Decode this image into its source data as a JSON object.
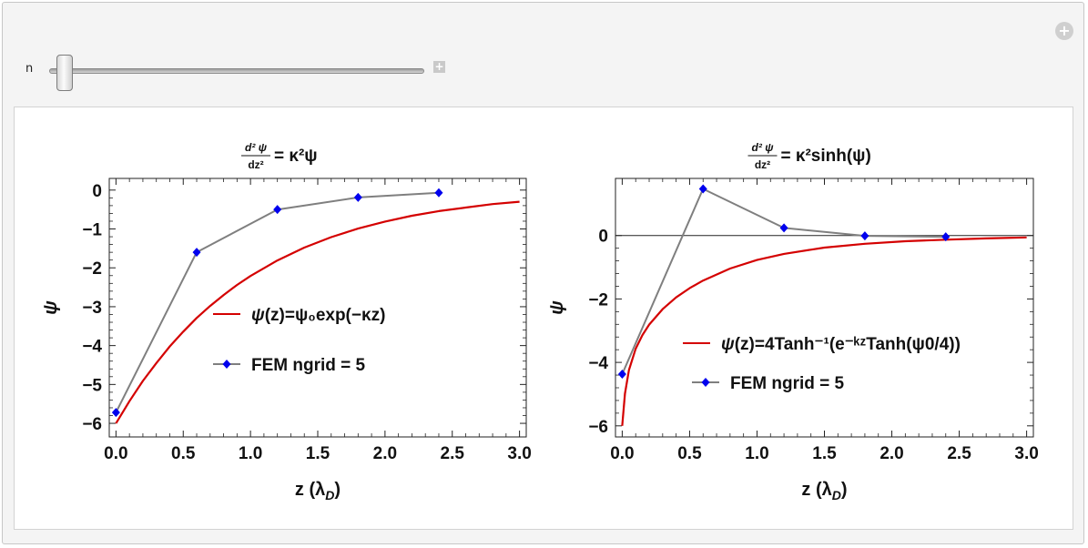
{
  "controls": {
    "slider_label": "n",
    "slider_value": 0.0,
    "increment_glyph": "+",
    "options_glyph": "+"
  },
  "chart_data": [
    {
      "type": "line",
      "title": {
        "lhs_num": "d² ψ",
        "lhs_den": "dz²",
        "rhs": "= κ²ψ"
      },
      "xlabel": "z (λD)",
      "ylabel": "ψ",
      "xlim": [
        -0.05,
        3.05
      ],
      "ylim": [
        -6.35,
        0.3
      ],
      "xticks": [
        0.0,
        0.5,
        1.0,
        1.5,
        2.0,
        2.5,
        3.0
      ],
      "xtick_labels": [
        "0.0",
        "0.5",
        "1.0",
        "1.5",
        "2.0",
        "2.5",
        "3.0"
      ],
      "yticks": [
        0,
        -1,
        -2,
        -3,
        -4,
        -5,
        -6
      ],
      "ytick_labels": [
        "0",
        "−1",
        "−2",
        "−3",
        "−4",
        "−5",
        "−6"
      ],
      "zero_line": false,
      "series": [
        {
          "name": "ψ(z)=ψ₀exp(−κz)",
          "kind": "analytic-exp",
          "color": "#d40000",
          "x": [
            0.0,
            0.1,
            0.2,
            0.3,
            0.4,
            0.5,
            0.6,
            0.7,
            0.8,
            0.9,
            1.0,
            1.2,
            1.4,
            1.6,
            1.8,
            2.0,
            2.2,
            2.4,
            2.6,
            2.8,
            3.0
          ],
          "y": [
            -6.0,
            -5.43,
            -4.91,
            -4.45,
            -4.02,
            -3.64,
            -3.29,
            -2.98,
            -2.7,
            -2.44,
            -2.21,
            -1.81,
            -1.48,
            -1.21,
            -0.99,
            -0.81,
            -0.66,
            -0.54,
            -0.45,
            -0.36,
            -0.3
          ]
        },
        {
          "name": "FEM ngrid = 5",
          "kind": "fem",
          "color": "#7f7f7f",
          "marker_color": "#0000ee",
          "x": [
            0.0,
            0.6,
            1.2,
            1.8,
            2.4
          ],
          "y": [
            -5.72,
            -1.6,
            -0.5,
            -0.19,
            -0.07
          ]
        }
      ],
      "legend": [
        {
          "label": "ψ(z)=ψ₀exp(−κz)",
          "type": "line",
          "color": "#d40000"
        },
        {
          "label": "FEM ngrid = 5",
          "type": "line-marker",
          "color": "#7f7f7f",
          "marker_color": "#0000ee"
        }
      ]
    },
    {
      "type": "line",
      "title": {
        "lhs_num": "d² ψ",
        "lhs_den": "dz²",
        "rhs": "= κ²sinh(ψ)"
      },
      "xlabel": "z (λD)",
      "ylabel": "ψ",
      "xlim": [
        -0.05,
        3.05
      ],
      "ylim": [
        -6.35,
        1.8
      ],
      "xticks": [
        0.0,
        0.5,
        1.0,
        1.5,
        2.0,
        2.5,
        3.0
      ],
      "xtick_labels": [
        "0.0",
        "0.5",
        "1.0",
        "1.5",
        "2.0",
        "2.5",
        "3.0"
      ],
      "yticks": [
        0,
        -2,
        -4,
        -6
      ],
      "ytick_labels": [
        "0",
        "−2",
        "−4",
        "−6"
      ],
      "zero_line": true,
      "series": [
        {
          "name": "ψ(z)=4Tanh⁻¹(e^(−κz)Tanh(ψ0/4))",
          "kind": "analytic-tanh",
          "color": "#d40000",
          "x": [
            0.0,
            0.02,
            0.05,
            0.1,
            0.15,
            0.2,
            0.3,
            0.4,
            0.5,
            0.6,
            0.8,
            1.0,
            1.2,
            1.5,
            1.8,
            2.1,
            2.4,
            2.7,
            3.0
          ],
          "y": [
            -6.0,
            -4.99,
            -4.24,
            -3.57,
            -3.14,
            -2.81,
            -2.32,
            -1.95,
            -1.66,
            -1.42,
            -1.04,
            -0.77,
            -0.58,
            -0.38,
            -0.26,
            -0.18,
            -0.13,
            -0.09,
            -0.06
          ]
        },
        {
          "name": "FEM ngrid = 5",
          "kind": "fem",
          "color": "#7f7f7f",
          "marker_color": "#0000ee",
          "x": [
            0.0,
            0.6,
            1.2,
            1.8,
            2.4
          ],
          "y": [
            -4.37,
            1.47,
            0.24,
            -0.01,
            -0.04
          ]
        }
      ],
      "legend": [
        {
          "label": "ψ(z)=4Tanh⁻¹(e⁻ᵏᶻTanh(ψ0/4))",
          "type": "line",
          "color": "#d40000"
        },
        {
          "label": "FEM ngrid = 5",
          "type": "line-marker",
          "color": "#7f7f7f",
          "marker_color": "#0000ee"
        }
      ]
    }
  ]
}
